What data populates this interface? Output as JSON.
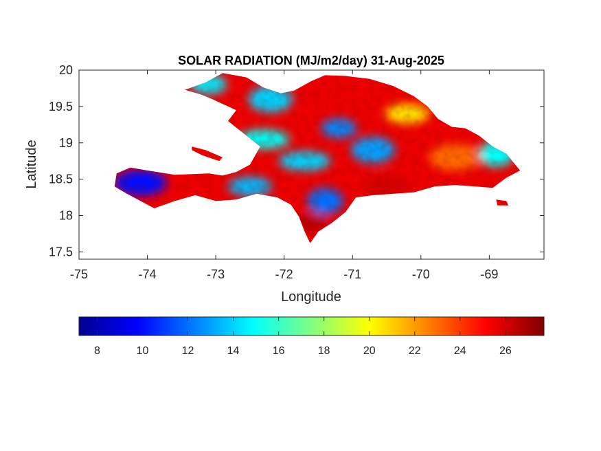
{
  "chart_data": {
    "type": "heatmap",
    "title": "SOLAR RADIATION (MJ/m2/day) 31-Aug-2025",
    "xlabel": "Longitude",
    "ylabel": "Latitude",
    "xlim": [
      -75,
      -68.2
    ],
    "ylim": [
      17.4,
      20
    ],
    "x_ticks": [
      -75,
      -74,
      -73,
      -72,
      -71,
      -70,
      -69
    ],
    "x_tick_labels": [
      "-75",
      "-74",
      "-73",
      "-72",
      "-71",
      "-70",
      "-69"
    ],
    "y_ticks": [
      17.5,
      18,
      18.5,
      19,
      19.5,
      20
    ],
    "y_tick_labels": [
      "17.5",
      "18",
      "18.5",
      "19",
      "19.5",
      "20"
    ],
    "grid": false,
    "colormap": "jet",
    "colorbar": {
      "position": "bottom",
      "range": [
        7.2,
        27.7
      ],
      "ticks": [
        8,
        10,
        12,
        14,
        16,
        18,
        20,
        22,
        24,
        26
      ],
      "tick_labels": [
        "8",
        "10",
        "12",
        "14",
        "16",
        "18",
        "20",
        "22",
        "24",
        "26"
      ],
      "colors": [
        "#00008f",
        "#0000ff",
        "#0080ff",
        "#00ffff",
        "#80ff80",
        "#ffff00",
        "#ff8000",
        "#ff0000",
        "#800000"
      ]
    },
    "regions": [
      {
        "lon": -71.2,
        "lat": 19.2,
        "value": 12.5
      },
      {
        "lon": -70.7,
        "lat": 18.9,
        "value": 13.0
      },
      {
        "lon": -71.7,
        "lat": 18.75,
        "value": 14.0
      },
      {
        "lon": -71.4,
        "lat": 18.2,
        "value": 12.0
      },
      {
        "lon": -72.5,
        "lat": 18.4,
        "value": 13.5
      },
      {
        "lon": -74.1,
        "lat": 18.45,
        "value": 10.0
      },
      {
        "lon": -73.1,
        "lat": 19.8,
        "value": 14.5
      },
      {
        "lon": -72.2,
        "lat": 19.6,
        "value": 14.0
      },
      {
        "lon": -72.3,
        "lat": 19.05,
        "value": 15.0
      },
      {
        "lon": -68.9,
        "lat": 18.85,
        "value": 15.0
      },
      {
        "lon": -70.2,
        "lat": 19.4,
        "value": 20.5
      },
      {
        "lon": -69.5,
        "lat": 18.8,
        "value": 23.0
      },
      {
        "lon": -71.6,
        "lat": 17.9,
        "value": 26.5
      },
      {
        "lon": -70.5,
        "lat": 18.4,
        "value": 26.0
      }
    ],
    "base_value": 25.5
  }
}
